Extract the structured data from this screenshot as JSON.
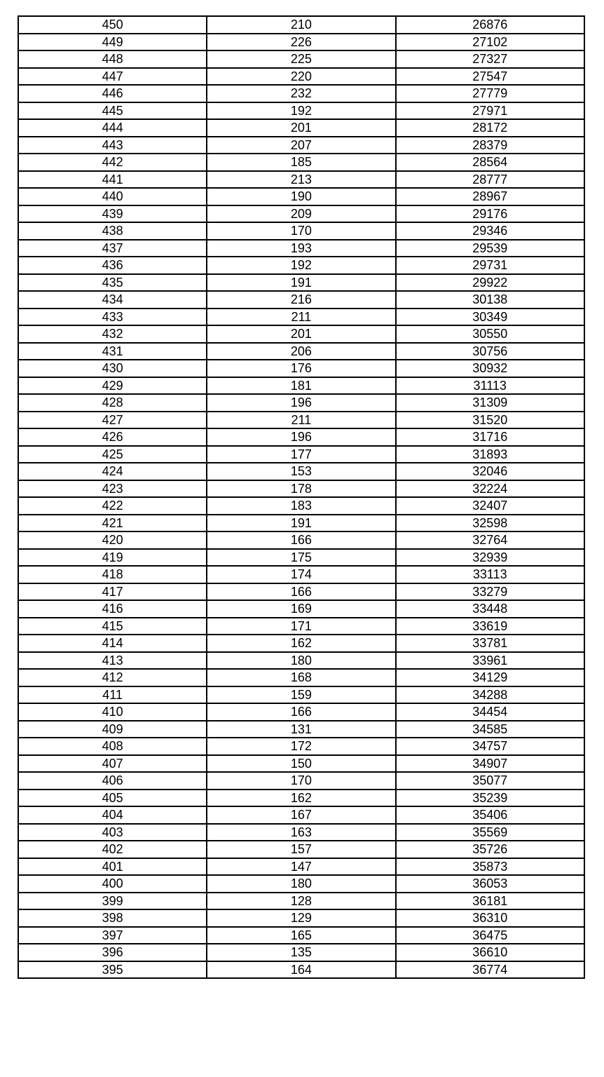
{
  "table": {
    "rows": [
      [
        "450",
        "210",
        "26876"
      ],
      [
        "449",
        "226",
        "27102"
      ],
      [
        "448",
        "225",
        "27327"
      ],
      [
        "447",
        "220",
        "27547"
      ],
      [
        "446",
        "232",
        "27779"
      ],
      [
        "445",
        "192",
        "27971"
      ],
      [
        "444",
        "201",
        "28172"
      ],
      [
        "443",
        "207",
        "28379"
      ],
      [
        "442",
        "185",
        "28564"
      ],
      [
        "441",
        "213",
        "28777"
      ],
      [
        "440",
        "190",
        "28967"
      ],
      [
        "439",
        "209",
        "29176"
      ],
      [
        "438",
        "170",
        "29346"
      ],
      [
        "437",
        "193",
        "29539"
      ],
      [
        "436",
        "192",
        "29731"
      ],
      [
        "435",
        "191",
        "29922"
      ],
      [
        "434",
        "216",
        "30138"
      ],
      [
        "433",
        "211",
        "30349"
      ],
      [
        "432",
        "201",
        "30550"
      ],
      [
        "431",
        "206",
        "30756"
      ],
      [
        "430",
        "176",
        "30932"
      ],
      [
        "429",
        "181",
        "31113"
      ],
      [
        "428",
        "196",
        "31309"
      ],
      [
        "427",
        "211",
        "31520"
      ],
      [
        "426",
        "196",
        "31716"
      ],
      [
        "425",
        "177",
        "31893"
      ],
      [
        "424",
        "153",
        "32046"
      ],
      [
        "423",
        "178",
        "32224"
      ],
      [
        "422",
        "183",
        "32407"
      ],
      [
        "421",
        "191",
        "32598"
      ],
      [
        "420",
        "166",
        "32764"
      ],
      [
        "419",
        "175",
        "32939"
      ],
      [
        "418",
        "174",
        "33113"
      ],
      [
        "417",
        "166",
        "33279"
      ],
      [
        "416",
        "169",
        "33448"
      ],
      [
        "415",
        "171",
        "33619"
      ],
      [
        "414",
        "162",
        "33781"
      ],
      [
        "413",
        "180",
        "33961"
      ],
      [
        "412",
        "168",
        "34129"
      ],
      [
        "411",
        "159",
        "34288"
      ],
      [
        "410",
        "166",
        "34454"
      ],
      [
        "409",
        "131",
        "34585"
      ],
      [
        "408",
        "172",
        "34757"
      ],
      [
        "407",
        "150",
        "34907"
      ],
      [
        "406",
        "170",
        "35077"
      ],
      [
        "405",
        "162",
        "35239"
      ],
      [
        "404",
        "167",
        "35406"
      ],
      [
        "403",
        "163",
        "35569"
      ],
      [
        "402",
        "157",
        "35726"
      ],
      [
        "401",
        "147",
        "35873"
      ],
      [
        "400",
        "180",
        "36053"
      ],
      [
        "399",
        "128",
        "36181"
      ],
      [
        "398",
        "129",
        "36310"
      ],
      [
        "397",
        "165",
        "36475"
      ],
      [
        "396",
        "135",
        "36610"
      ],
      [
        "395",
        "164",
        "36774"
      ]
    ]
  }
}
